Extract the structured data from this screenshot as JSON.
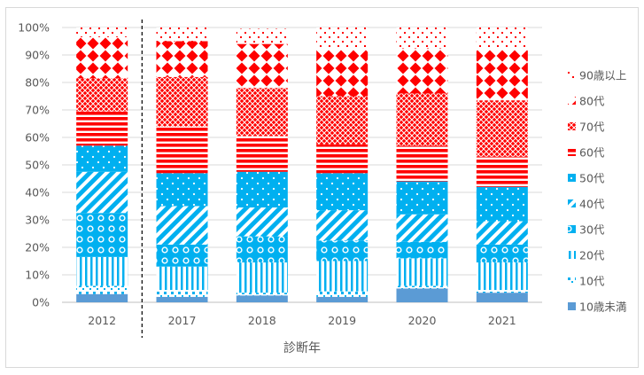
{
  "chart_data": {
    "type": "bar",
    "stacked": true,
    "normalized_percent": true,
    "categories": [
      "2012",
      "2017",
      "2018",
      "2019",
      "2020",
      "2021"
    ],
    "xlabel": "診断年",
    "ylabel": "",
    "ylim": [
      0,
      100
    ],
    "y_ticks": [
      "0%",
      "10%",
      "20%",
      "30%",
      "40%",
      "50%",
      "60%",
      "70%",
      "80%",
      "90%",
      "100%"
    ],
    "gridlines": true,
    "legend_position": "right",
    "separator_after_category": "2012",
    "series": [
      {
        "name": "10歳未満",
        "color": "#5b9bd5",
        "pattern": "solid",
        "values": [
          3.0,
          2.0,
          2.5,
          2.0,
          5.0,
          3.5
        ]
      },
      {
        "name": "10代",
        "color": "#00b0f0",
        "pattern": "small-dots",
        "values": [
          3.0,
          2.5,
          1.0,
          2.0,
          1.0,
          1.0
        ]
      },
      {
        "name": "20代",
        "color": "#00b0f0",
        "pattern": "vertical",
        "values": [
          10.5,
          8.5,
          11.0,
          11.0,
          10.0,
          10.0
        ]
      },
      {
        "name": "30代",
        "color": "#00b0f0",
        "pattern": "circles",
        "values": [
          16.0,
          8.0,
          9.5,
          7.5,
          6.0,
          6.5
        ]
      },
      {
        "name": "40代",
        "color": "#00b0f0",
        "pattern": "diagonal",
        "values": [
          15.0,
          14.0,
          10.5,
          11.0,
          10.0,
          8.5
        ]
      },
      {
        "name": "50代",
        "color": "#00b0f0",
        "pattern": "dots",
        "values": [
          9.5,
          12.0,
          13.0,
          13.5,
          12.0,
          12.5
        ]
      },
      {
        "name": "60代",
        "color": "#ff0000",
        "pattern": "horizontal",
        "values": [
          12.5,
          17.0,
          13.0,
          10.5,
          13.0,
          11.0
        ]
      },
      {
        "name": "70代",
        "color": "#ff0000",
        "pattern": "crosshatch",
        "values": [
          12.0,
          18.0,
          17.5,
          17.5,
          19.0,
          20.5
        ]
      },
      {
        "name": "80代",
        "color": "#ff0000",
        "pattern": "diamonds",
        "values": [
          15.0,
          13.0,
          16.0,
          17.0,
          16.5,
          18.5
        ]
      },
      {
        "name": "90歳以上",
        "color": "#ff0000",
        "pattern": "sparse-dots",
        "values": [
          3.5,
          5.0,
          5.5,
          8.0,
          7.5,
          8.0
        ]
      }
    ]
  }
}
